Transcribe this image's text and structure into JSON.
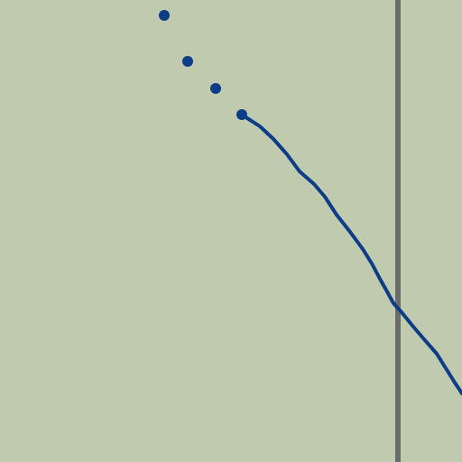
{
  "colors": {
    "background": "#c0caaf",
    "trace": "#0e3d87",
    "vertical_line": "#6b6b6b"
  },
  "view": {
    "title": "",
    "xlabel": "",
    "ylabel": "",
    "grid": false,
    "legend": "none"
  },
  "trace": {
    "style": "dotted-then-solid"
  },
  "vertical_line": {
    "style": "solid"
  }
}
